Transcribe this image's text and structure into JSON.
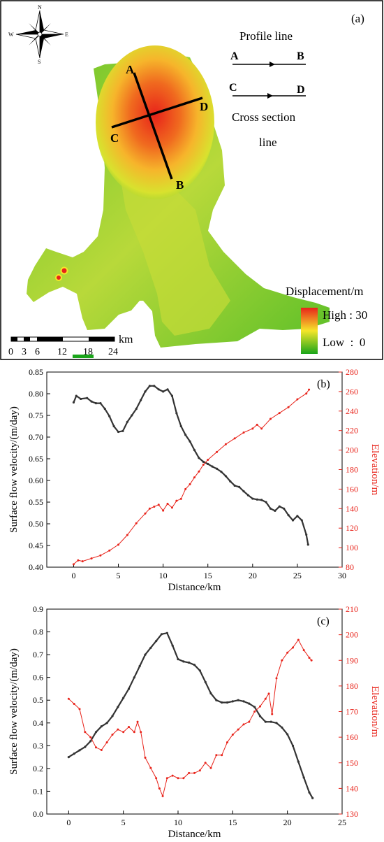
{
  "map": {
    "panel_label": "(a)",
    "compass": {
      "n": "N",
      "s": "S",
      "e": "E",
      "w": "W"
    },
    "point_labels": {
      "a": "A",
      "b": "B",
      "c": "C",
      "d": "D"
    },
    "legend": {
      "profile_title": "Profile line",
      "profile_start": "A",
      "profile_end": "B",
      "cross_start": "C",
      "cross_end": "D",
      "cross_title_1": "Cross section",
      "cross_title_2": "line",
      "displacement_title": "Displacement/m",
      "high_label": "High : 30",
      "low_label": "Low  :  0"
    },
    "scalebar": {
      "unit": "km",
      "ticks": [
        "0",
        "3",
        "6",
        "12",
        "18",
        "24"
      ]
    },
    "colors": {
      "high": "#e8231a",
      "mid": "#f5e62a",
      "low": "#1aa51a"
    }
  },
  "chart_data": [
    {
      "type": "line",
      "panel_label": "(b)",
      "xlabel": "Distance/km",
      "ylabel_left": "Surface flow velocity/(m/day)",
      "ylabel_right": "Elevation/m",
      "xlim": [
        -3,
        30
      ],
      "xticks": [
        "0",
        "5",
        "10",
        "15",
        "20",
        "25",
        "30"
      ],
      "ylim_left": [
        0.4,
        0.85
      ],
      "yticks_left": [
        "0.40",
        "0.45",
        "0.50",
        "0.55",
        "0.60",
        "0.65",
        "0.70",
        "0.75",
        "0.80",
        "0.85"
      ],
      "ylim_right": [
        80,
        280
      ],
      "yticks_right": [
        "80",
        "100",
        "120",
        "140",
        "160",
        "180",
        "200",
        "220",
        "240",
        "260",
        "280"
      ],
      "series": [
        {
          "axis": "left",
          "color": "#333333",
          "x": [
            0,
            0.3,
            0.8,
            1.5,
            2,
            2.5,
            3,
            3.5,
            4,
            4.5,
            5,
            5.5,
            6,
            6.5,
            7,
            7.5,
            8,
            8.5,
            9,
            9.5,
            10,
            10.5,
            11,
            11.5,
            12,
            12.5,
            13,
            13.5,
            14,
            14.5,
            15,
            15.5,
            16,
            16.5,
            17,
            17.5,
            18,
            18.5,
            19,
            19.5,
            20,
            20.5,
            21,
            21.5,
            22,
            22.5,
            23,
            23.5,
            24,
            24.5,
            25,
            25.5,
            26,
            26.2
          ],
          "y": [
            0.78,
            0.795,
            0.788,
            0.79,
            0.782,
            0.778,
            0.778,
            0.765,
            0.748,
            0.725,
            0.712,
            0.714,
            0.735,
            0.75,
            0.765,
            0.785,
            0.805,
            0.818,
            0.818,
            0.81,
            0.805,
            0.81,
            0.795,
            0.755,
            0.725,
            0.705,
            0.69,
            0.67,
            0.652,
            0.643,
            0.638,
            0.632,
            0.627,
            0.62,
            0.61,
            0.598,
            0.588,
            0.585,
            0.575,
            0.566,
            0.558,
            0.556,
            0.555,
            0.55,
            0.535,
            0.53,
            0.54,
            0.535,
            0.52,
            0.508,
            0.518,
            0.508,
            0.475,
            0.452
          ]
        },
        {
          "axis": "right",
          "color": "#e8231a",
          "x": [
            0,
            0.5,
            1,
            2,
            3,
            4,
            5,
            6,
            7,
            8,
            8.5,
            9,
            9.5,
            10,
            10.5,
            11,
            11.5,
            12,
            12.5,
            13,
            13.5,
            14,
            14.5,
            15,
            16,
            17,
            18,
            19,
            20,
            20.5,
            21,
            22,
            23,
            24,
            25,
            26,
            26.3
          ],
          "y": [
            83,
            87,
            86,
            89,
            92,
            97,
            103,
            113,
            125,
            135,
            140,
            142,
            144,
            138,
            145,
            141,
            148,
            150,
            160,
            165,
            172,
            178,
            185,
            190,
            198,
            206,
            212,
            218,
            222,
            226,
            222,
            232,
            238,
            244,
            252,
            258,
            262
          ]
        }
      ]
    },
    {
      "type": "line",
      "panel_label": "(c)",
      "xlabel": "Distance/km",
      "ylabel_left": "Surface flow velocity/(m/day)",
      "ylabel_right": "Elevation/m",
      "xlim": [
        -2,
        25
      ],
      "xticks": [
        "0",
        "5",
        "10",
        "15",
        "20",
        "25"
      ],
      "ylim_left": [
        0.0,
        0.9
      ],
      "yticks_left": [
        "0.0",
        "0.1",
        "0.2",
        "0.3",
        "0.4",
        "0.5",
        "0.6",
        "0.7",
        "0.8",
        "0.9"
      ],
      "ylim_right": [
        130,
        210
      ],
      "yticks_right": [
        "130",
        "140",
        "150",
        "160",
        "170",
        "180",
        "190",
        "200",
        "210"
      ],
      "series": [
        {
          "axis": "left",
          "color": "#333333",
          "x": [
            0,
            0.5,
            1,
            1.5,
            2,
            2.5,
            3,
            3.5,
            4,
            4.5,
            5,
            5.5,
            6,
            6.5,
            7,
            7.5,
            8,
            8.5,
            9,
            9.5,
            10,
            10.5,
            11,
            11.5,
            12,
            12.5,
            13,
            13.5,
            14,
            14.5,
            15,
            15.5,
            16,
            16.5,
            17,
            17.5,
            18,
            18.5,
            19,
            19.5,
            20,
            20.5,
            21,
            21.5,
            22,
            22.3
          ],
          "y": [
            0.25,
            0.265,
            0.28,
            0.295,
            0.32,
            0.36,
            0.385,
            0.4,
            0.43,
            0.47,
            0.51,
            0.55,
            0.6,
            0.65,
            0.7,
            0.73,
            0.76,
            0.79,
            0.795,
            0.74,
            0.68,
            0.67,
            0.665,
            0.655,
            0.63,
            0.58,
            0.53,
            0.5,
            0.49,
            0.49,
            0.495,
            0.5,
            0.495,
            0.485,
            0.47,
            0.43,
            0.405,
            0.405,
            0.4,
            0.38,
            0.35,
            0.3,
            0.23,
            0.16,
            0.095,
            0.07
          ]
        },
        {
          "axis": "right",
          "color": "#e8231a",
          "x": [
            0,
            0.5,
            1,
            1.5,
            2,
            2.5,
            3,
            3.5,
            4,
            4.5,
            5,
            5.5,
            6,
            6.3,
            6.6,
            7,
            7.5,
            8,
            8.3,
            8.6,
            9,
            9.5,
            10,
            10.5,
            11,
            11.5,
            12,
            12.5,
            13,
            13.5,
            14,
            14.5,
            15,
            15.5,
            16,
            16.5,
            17,
            17.5,
            18,
            18.3,
            18.6,
            19,
            19.5,
            20,
            20.5,
            21,
            21.5,
            22,
            22.2
          ],
          "y": [
            175,
            173,
            171,
            162,
            160,
            156,
            155,
            158,
            161,
            163,
            162,
            164,
            162,
            166,
            162,
            152,
            148,
            144,
            140,
            137,
            144,
            145,
            144,
            144,
            146,
            146,
            147,
            150,
            148,
            153,
            153,
            158,
            161,
            163,
            165,
            166,
            170,
            172,
            175,
            177,
            169,
            183,
            190,
            193,
            195,
            198,
            194,
            191,
            190
          ]
        }
      ]
    }
  ]
}
